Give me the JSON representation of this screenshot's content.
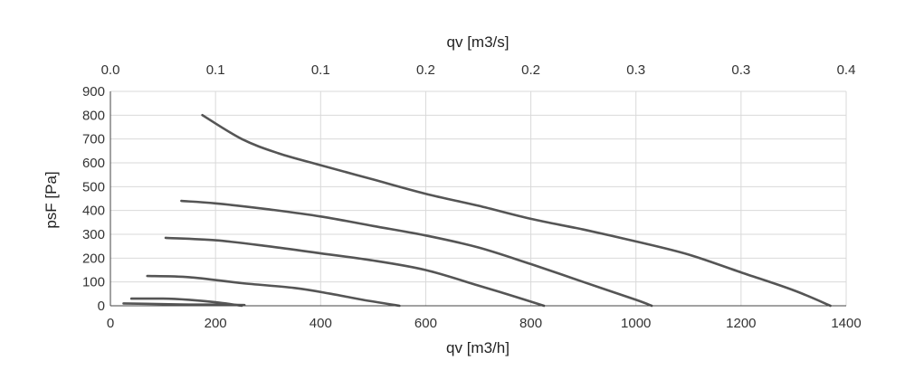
{
  "chart_data": {
    "type": "line",
    "title": "",
    "xlabel": "qv [m3/h]",
    "x2label": "qv [m3/s]",
    "ylabel": "psF [Pa]",
    "xlim": [
      0,
      1400
    ],
    "ylim": [
      0,
      900
    ],
    "x_ticks": [
      0,
      200,
      400,
      600,
      800,
      1000,
      1200,
      1400
    ],
    "y_ticks": [
      0,
      100,
      200,
      300,
      400,
      500,
      600,
      700,
      800,
      900
    ],
    "x2_tick_labels": [
      "0.0",
      "0.1",
      "0.1",
      "0.2",
      "0.2",
      "0.3",
      "0.3",
      "0.4"
    ],
    "grid": true,
    "legend": "none",
    "line_color": "#555555",
    "series": [
      {
        "x": [
          175,
          250,
          320,
          400,
          500,
          600,
          700,
          800,
          900,
          1000,
          1100,
          1200,
          1300,
          1370
        ],
        "y": [
          800,
          700,
          640,
          590,
          530,
          470,
          420,
          365,
          320,
          270,
          215,
          140,
          65,
          0
        ]
      },
      {
        "x": [
          135,
          200,
          300,
          400,
          500,
          600,
          700,
          800,
          900,
          1000,
          1030
        ],
        "y": [
          440,
          430,
          405,
          375,
          335,
          295,
          245,
          175,
          100,
          25,
          0
        ]
      },
      {
        "x": [
          105,
          200,
          300,
          400,
          500,
          600,
          700,
          760,
          825
        ],
        "y": [
          285,
          275,
          250,
          220,
          190,
          150,
          85,
          45,
          0
        ]
      },
      {
        "x": [
          70,
          150,
          250,
          350,
          420,
          480,
          550
        ],
        "y": [
          125,
          120,
          95,
          75,
          50,
          25,
          0
        ]
      },
      {
        "x": [
          40,
          100,
          150,
          200,
          250
        ],
        "y": [
          30,
          30,
          25,
          15,
          0
        ]
      },
      {
        "x": [
          25,
          100,
          150,
          200,
          255
        ],
        "y": [
          10,
          7,
          5,
          5,
          3
        ]
      }
    ]
  }
}
